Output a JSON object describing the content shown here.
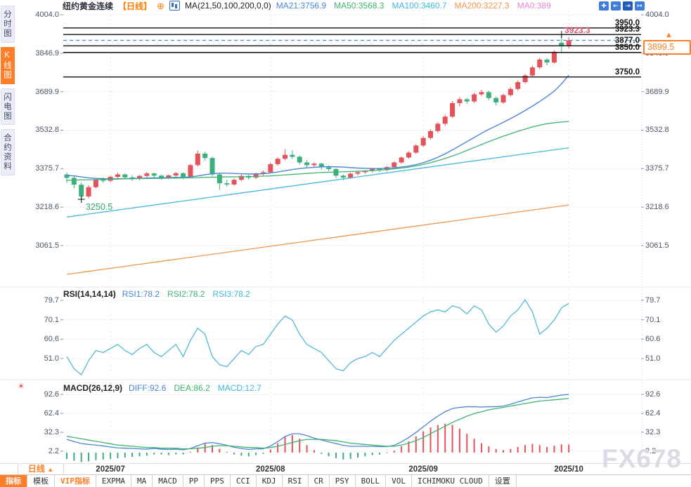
{
  "sidebar": {
    "tabs": [
      {
        "label": "分时图",
        "active": false
      },
      {
        "label": "K线图",
        "active": true
      },
      {
        "label": "闪电图",
        "active": false
      },
      {
        "label": "合约资料",
        "active": false
      }
    ]
  },
  "header": {
    "symbol": "纽约黄金连续",
    "period": "【日线】",
    "ma_formula": "MA(21,50,100,200,0,0)",
    "legend": [
      {
        "text": "MA21:3756.9",
        "color": "#4a86d4"
      },
      {
        "text": "MA50:3568.3",
        "color": "#3eb370"
      },
      {
        "text": "MA100:3460.7",
        "color": "#3fb6dc"
      },
      {
        "text": "MA200:3227.3",
        "color": "#f0964c"
      },
      {
        "text": "MA0:389",
        "color": "#e884d8"
      }
    ],
    "icons": [
      {
        "name": "crosshair-icon",
        "glyph": "✚",
        "active": false
      },
      {
        "name": "compress-icon",
        "glyph": "⇤",
        "active": false
      },
      {
        "name": "expand-icon",
        "glyph": "⇥",
        "active": true
      },
      {
        "name": "pan-right-icon",
        "glyph": "↦",
        "active": false
      }
    ]
  },
  "chart_data": {
    "type": "candlestick",
    "symbol": "纽约黄金连续",
    "interval": "日线",
    "x_ticks": [
      {
        "label": "2025/07",
        "index": 6
      },
      {
        "label": "2025/08",
        "index": 28
      },
      {
        "label": "2025/09",
        "index": 49
      },
      {
        "label": "2025/10",
        "index": 69
      }
    ],
    "colors": {
      "up": "#e4525a",
      "down": "#3cb07a",
      "ma21": "#4a86d4",
      "ma50": "#3eb370",
      "ma100": "#45b6dc",
      "ma200": "#f0964c",
      "rsi": "#54b8d8",
      "diff": "#4a86d4",
      "dea": "#3eb370",
      "level_line": "#111111",
      "price_line": "#3f8fe0",
      "accent": "#ff7f28"
    },
    "panes": {
      "main": {
        "axis": [
          "4004.0",
          "3846.9",
          "3689.9",
          "3532.8",
          "3375.7",
          "3218.6",
          "3061.5"
        ],
        "levels": [
          3950.0,
          3923.3,
          3877.0,
          3850.0,
          3750.0
        ],
        "current_price": 3899.5,
        "current_price_label": "3899.5",
        "high_marker": {
          "index": 68,
          "price": 3923.3,
          "label": "3923.3"
        },
        "low_marker": {
          "index": 2,
          "price": 3250.5,
          "label": "3250.5"
        },
        "candles": {
          "open": [
            3352,
            3338,
            3310,
            3262,
            3300,
            3332,
            3326,
            3342,
            3352,
            3340,
            3334,
            3346,
            3356,
            3347,
            3339,
            3348,
            3357,
            3341,
            3390,
            3437,
            3419,
            3352,
            3316,
            3311,
            3330,
            3346,
            3339,
            3354,
            3361,
            3394,
            3416,
            3432,
            3424,
            3401,
            3390,
            3396,
            3381,
            3374,
            3347,
            3339,
            3355,
            3361,
            3366,
            3375,
            3370,
            3382,
            3401,
            3421,
            3441,
            3470,
            3501,
            3529,
            3559,
            3588,
            3643,
            3659,
            3650,
            3679,
            3688,
            3664,
            3646,
            3676,
            3701,
            3729,
            3756,
            3789,
            3821,
            3809,
            3890,
            3877
          ],
          "high": [
            3360,
            3345,
            3318,
            3308,
            3338,
            3340,
            3348,
            3360,
            3356,
            3348,
            3350,
            3362,
            3360,
            3352,
            3352,
            3362,
            3360,
            3395,
            3450,
            3445,
            3425,
            3358,
            3330,
            3336,
            3352,
            3350,
            3360,
            3368,
            3400,
            3422,
            3455,
            3451,
            3430,
            3410,
            3402,
            3400,
            3388,
            3378,
            3352,
            3360,
            3366,
            3370,
            3380,
            3379,
            3386,
            3406,
            3426,
            3447,
            3476,
            3508,
            3536,
            3566,
            3596,
            3652,
            3668,
            3665,
            3686,
            3698,
            3694,
            3670,
            3682,
            3708,
            3736,
            3762,
            3796,
            3828,
            3826,
            3860,
            3923.3,
            3912
          ],
          "low": [
            3318,
            3295,
            3250.5,
            3255,
            3295,
            3318,
            3320,
            3335,
            3332,
            3325,
            3328,
            3340,
            3338,
            3330,
            3333,
            3342,
            3332,
            3338,
            3385,
            3408,
            3345,
            3290,
            3302,
            3306,
            3325,
            3330,
            3334,
            3348,
            3356,
            3388,
            3410,
            3415,
            3392,
            3380,
            3382,
            3372,
            3366,
            3338,
            3328,
            3334,
            3348,
            3355,
            3360,
            3362,
            3365,
            3378,
            3396,
            3416,
            3436,
            3464,
            3494,
            3522,
            3551,
            3582,
            3630,
            3640,
            3644,
            3672,
            3655,
            3634,
            3640,
            3670,
            3694,
            3722,
            3750,
            3782,
            3798,
            3804,
            3852,
            3866
          ],
          "close": [
            3338,
            3310,
            3262,
            3300,
            3332,
            3326,
            3342,
            3352,
            3340,
            3334,
            3346,
            3356,
            3347,
            3339,
            3348,
            3357,
            3341,
            3390,
            3437,
            3419,
            3352,
            3316,
            3311,
            3330,
            3346,
            3339,
            3354,
            3361,
            3394,
            3416,
            3432,
            3424,
            3401,
            3390,
            3396,
            3381,
            3374,
            3347,
            3339,
            3355,
            3361,
            3366,
            3375,
            3370,
            3382,
            3401,
            3421,
            3441,
            3470,
            3501,
            3529,
            3559,
            3588,
            3643,
            3659,
            3650,
            3679,
            3688,
            3664,
            3646,
            3676,
            3701,
            3729,
            3756,
            3789,
            3821,
            3809,
            3853,
            3877,
            3899.5
          ]
        },
        "ma21": [
          3348,
          3346,
          3342,
          3338,
          3336,
          3335,
          3334,
          3334,
          3335,
          3336,
          3336,
          3337,
          3338,
          3338,
          3339,
          3340,
          3340,
          3342,
          3346,
          3351,
          3355,
          3357,
          3357,
          3356,
          3355,
          3354,
          3354,
          3355,
          3358,
          3362,
          3367,
          3372,
          3376,
          3379,
          3381,
          3383,
          3384,
          3383,
          3382,
          3380,
          3378,
          3377,
          3376,
          3376,
          3377,
          3379,
          3382,
          3386,
          3392,
          3400,
          3410,
          3422,
          3436,
          3452,
          3469,
          3486,
          3503,
          3520,
          3536,
          3550,
          3565,
          3580,
          3596,
          3613,
          3631,
          3650,
          3670,
          3692,
          3722,
          3756.9
        ],
        "ma50": [
          3328,
          3329,
          3330,
          3330,
          3331,
          3332,
          3332,
          3333,
          3334,
          3334,
          3335,
          3335,
          3336,
          3336,
          3337,
          3337,
          3338,
          3338,
          3339,
          3340,
          3341,
          3341,
          3342,
          3342,
          3343,
          3343,
          3344,
          3345,
          3346,
          3348,
          3350,
          3352,
          3354,
          3356,
          3358,
          3360,
          3361,
          3362,
          3363,
          3364,
          3365,
          3366,
          3368,
          3370,
          3372,
          3375,
          3378,
          3382,
          3387,
          3393,
          3400,
          3408,
          3417,
          3427,
          3438,
          3450,
          3462,
          3474,
          3486,
          3497,
          3508,
          3518,
          3528,
          3537,
          3546,
          3553,
          3559,
          3563,
          3566,
          3568.3
        ],
        "ma100_linear": [
          3178,
          3460.7
        ],
        "ma200_linear": [
          2944,
          3227.3
        ]
      },
      "rsi": {
        "title": "RSI(14,14,14)",
        "legend": [
          {
            "text": "RSI1:78.2",
            "color": "#4a86d4"
          },
          {
            "text": "RSI2:78.2",
            "color": "#3eb370"
          },
          {
            "text": "RSI3:78.2",
            "color": "#3fb6dc"
          }
        ],
        "axis": [
          "79.7",
          "70.1",
          "60.6",
          "51.0"
        ],
        "values": [
          52,
          46,
          43,
          50,
          55,
          54,
          56,
          58,
          55,
          53,
          56,
          58,
          54,
          52,
          55,
          58,
          52,
          60,
          66,
          63,
          52,
          48,
          47,
          51,
          55,
          53,
          57,
          58,
          63,
          68,
          72,
          70,
          63,
          58,
          56,
          54,
          50,
          46,
          45,
          49,
          51,
          52,
          54,
          52,
          56,
          60,
          63,
          66,
          69,
          72,
          74,
          75,
          74,
          77,
          76,
          73,
          77,
          75,
          68,
          64,
          67,
          72,
          75,
          80,
          74,
          63,
          66,
          70,
          76,
          78.2
        ]
      },
      "macd": {
        "title": "MACD(26,12,9)",
        "legend": [
          {
            "text": "DIFF:92.6",
            "color": "#4a86d4"
          },
          {
            "text": "DEA:86.2",
            "color": "#3eb370"
          },
          {
            "text": "MACD:12.7",
            "color": "#3fb6dc"
          }
        ],
        "axis": [
          "92.6",
          "62.4",
          "32.3",
          "2.2"
        ],
        "dea": [
          26,
          24,
          22,
          20,
          18,
          16,
          14,
          12,
          11,
          10,
          9,
          8,
          8,
          7,
          7,
          7,
          6,
          6,
          7,
          8,
          10,
          11,
          11,
          10,
          9,
          8,
          8,
          7,
          8,
          10,
          13,
          16,
          19,
          21,
          21,
          21,
          20,
          19,
          17,
          15,
          14,
          13,
          12,
          11,
          10,
          10,
          12,
          15,
          19,
          24,
          30,
          36,
          42,
          48,
          53,
          58,
          62,
          65,
          68,
          70,
          72,
          74,
          76,
          78,
          80,
          82,
          83,
          84,
          85,
          86.2
        ],
        "hist": [
          -10,
          -13,
          -15,
          -14,
          -12,
          -11,
          -10,
          -9,
          -8,
          -7,
          -6,
          -5,
          -3,
          -3,
          -4,
          -3,
          -3,
          1,
          8,
          14,
          12,
          6,
          1,
          -3,
          -5,
          -6,
          -4,
          -2,
          5,
          15,
          25,
          28,
          22,
          12,
          4,
          -2,
          -6,
          -9,
          -11,
          -10,
          -8,
          -6,
          -4,
          -3,
          -1,
          3,
          10,
          18,
          26,
          34,
          40,
          44,
          46,
          44,
          38,
          30,
          22,
          15,
          10,
          6,
          4,
          6,
          9,
          12,
          14,
          12,
          9,
          11,
          13,
          12.7
        ]
      }
    }
  },
  "footer": {
    "period_label": "日线",
    "buttons": [
      {
        "label": "指标",
        "active": true
      },
      {
        "label": "模板"
      },
      {
        "label": "VIP指标",
        "vip": true
      },
      {
        "label": "EXPMA"
      },
      {
        "label": "MA"
      },
      {
        "label": "MACD"
      },
      {
        "label": "PP"
      },
      {
        "label": "PPS"
      },
      {
        "label": "CCI"
      },
      {
        "label": "KDJ"
      },
      {
        "label": "RSI"
      },
      {
        "label": "CR"
      },
      {
        "label": "PSY"
      },
      {
        "label": "BOLL"
      },
      {
        "label": "VOL"
      },
      {
        "label": "ICHIMOKU CLOUD"
      },
      {
        "label": "设置"
      }
    ]
  },
  "watermark": {
    "text": "FX678"
  }
}
